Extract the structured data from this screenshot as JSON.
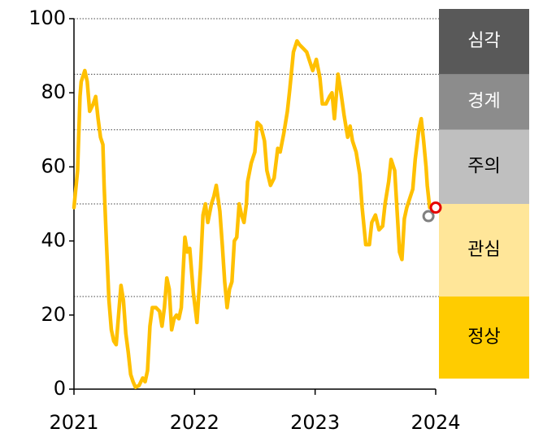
{
  "chart_data": {
    "type": "line",
    "x": [
      2021.0,
      2021.03,
      2021.05,
      2021.06,
      2021.09,
      2021.11,
      2021.13,
      2021.16,
      2021.18,
      2021.2,
      2021.22,
      2021.24,
      2021.25,
      2021.27,
      2021.29,
      2021.31,
      2021.33,
      2021.35,
      2021.37,
      2021.39,
      2021.41,
      2021.43,
      2021.45,
      2021.47,
      2021.49,
      2021.51,
      2021.54,
      2021.57,
      2021.59,
      2021.61,
      2021.63,
      2021.65,
      2021.68,
      2021.71,
      2021.73,
      2021.75,
      2021.77,
      2021.79,
      2021.81,
      2021.83,
      2021.85,
      2021.87,
      2021.89,
      2021.92,
      2021.94,
      2021.96,
      2021.99,
      2022.02,
      2022.05,
      2022.07,
      2022.09,
      2022.11,
      2022.14,
      2022.16,
      2022.18,
      2022.21,
      2022.23,
      2022.25,
      2022.27,
      2022.29,
      2022.31,
      2022.33,
      2022.35,
      2022.37,
      2022.39,
      2022.41,
      2022.43,
      2022.44,
      2022.47,
      2022.5,
      2022.52,
      2022.55,
      2022.58,
      2022.6,
      2022.63,
      2022.66,
      2022.69,
      2022.71,
      2022.74,
      2022.77,
      2022.79,
      2022.82,
      2022.85,
      2022.87,
      2022.9,
      2022.93,
      2022.96,
      2022.98,
      2023.01,
      2023.04,
      2023.06,
      2023.09,
      2023.12,
      2023.14,
      2023.16,
      2023.19,
      2023.21,
      2023.24,
      2023.27,
      2023.29,
      2023.31,
      2023.34,
      2023.37,
      2023.39,
      2023.42,
      2023.45,
      2023.47,
      2023.5,
      2023.53,
      2023.56,
      2023.58,
      2023.61,
      2023.63,
      2023.66,
      2023.68,
      2023.7,
      2023.72,
      2023.74,
      2023.76,
      2023.78,
      2023.81,
      2023.83,
      2023.86,
      2023.88,
      2023.9,
      2023.92,
      2023.93,
      2023.95
    ],
    "series": [
      {
        "color": "#ffc000",
        "values": [
          49,
          59,
          79,
          83,
          86,
          83,
          75,
          77,
          79,
          73,
          68,
          66,
          55,
          39,
          24,
          16,
          13,
          12,
          20,
          28,
          24,
          15,
          10,
          4,
          2,
          0.5,
          1,
          3,
          2,
          5,
          17,
          22,
          22,
          21,
          17,
          22,
          30,
          27,
          16,
          19,
          20,
          19,
          22,
          41,
          37,
          38,
          26,
          18,
          33,
          47,
          50,
          45,
          50,
          52,
          55,
          48,
          39,
          29,
          22,
          27,
          29,
          40,
          41,
          50,
          47,
          45,
          50,
          56,
          61,
          64,
          72,
          71,
          67,
          59,
          55,
          57,
          65,
          64,
          69,
          75,
          81,
          91,
          94,
          93,
          92,
          91,
          88,
          86,
          89,
          84,
          77,
          77,
          79,
          80,
          73,
          85,
          81,
          74,
          68,
          71,
          67,
          64,
          58,
          49,
          39,
          39,
          45,
          47,
          43,
          44,
          50,
          56,
          62,
          59,
          48,
          37,
          35,
          46,
          49,
          51,
          54,
          62,
          70,
          73,
          67,
          60,
          55,
          49
        ]
      }
    ],
    "points": [
      {
        "x": 2023.94,
        "value": 46.7,
        "color": "#808080"
      },
      {
        "x": 2024.0,
        "value": 49,
        "color": "#e60000"
      }
    ],
    "xlim": [
      2021,
      2024
    ],
    "xticks": [
      2021,
      2022,
      2023,
      2024
    ],
    "ylim": [
      0,
      100
    ],
    "yticks": [
      0,
      20,
      40,
      60,
      80,
      100
    ],
    "threshold_lines": [
      25,
      50,
      70,
      85,
      100
    ],
    "bands": [
      {
        "label": "심각",
        "range": [
          85,
          100
        ],
        "color": "#595959",
        "text_color": "#ffffff"
      },
      {
        "label": "경계",
        "range": [
          70,
          85
        ],
        "color": "#8c8c8c",
        "text_color": "#ffffff"
      },
      {
        "label": "주의",
        "range": [
          50,
          70
        ],
        "color": "#bfbfbf",
        "text_color": "#000000"
      },
      {
        "label": "관심",
        "range": [
          25,
          50
        ],
        "color": "#ffe699",
        "text_color": "#000000"
      },
      {
        "label": "정상",
        "range": [
          0,
          25
        ],
        "color": "#ffcc00",
        "text_color": "#000000"
      }
    ]
  }
}
